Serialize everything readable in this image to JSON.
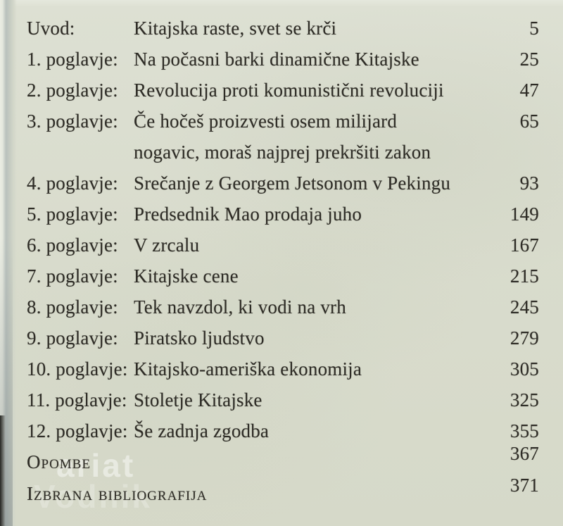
{
  "colors": {
    "paper": "#d9dccd",
    "ink": "#2e2c26",
    "edge_shadow": "#b9c1bd",
    "dark_corner": "#0e0e0b",
    "watermark": "#ffffff"
  },
  "watermark": {
    "line1": "ariat",
    "line2": "Vodnik"
  },
  "toc": {
    "entries": [
      {
        "label": "Uvod:",
        "title": "Kitajska raste, svet se krči",
        "page": "5"
      },
      {
        "label": "1. poglavje:",
        "title": "Na počasni barki dinamične Kitajske",
        "page": "25"
      },
      {
        "label": "2. poglavje:",
        "title": "Revolucija proti komunistični revoluciji",
        "page": "47"
      },
      {
        "label": "3. poglavje:",
        "title": "Če hočeš proizvesti osem milijard",
        "page": "65",
        "title_line2": "nogavic, moraš najprej prekršiti zakon"
      },
      {
        "label": "4. poglavje:",
        "title": "Srečanje z Georgem Jetsonom v Pekingu",
        "page": "93"
      },
      {
        "label": "5. poglavje:",
        "title": "Predsednik Mao prodaja juho",
        "page": "149"
      },
      {
        "label": "6. poglavje:",
        "title": "V zrcalu",
        "page": "167"
      },
      {
        "label": "7. poglavje:",
        "title": "Kitajske cene",
        "page": "215"
      },
      {
        "label": "8. poglavje:",
        "title": "Tek navzdol, ki vodi na vrh",
        "page": "245"
      },
      {
        "label": "9. poglavje:",
        "title": "Piratsko ljudstvo",
        "page": "279"
      },
      {
        "label": "10. poglavje:",
        "title": "Kitajsko-ameriška ekonomija",
        "page": "305"
      },
      {
        "label": "11. poglavje:",
        "title": "Stoletje Kitajske",
        "page": "325"
      },
      {
        "label": "12. poglavje:",
        "title": "Še zadnja zgodba",
        "page": "355"
      },
      {
        "label": "Opombe",
        "title": "",
        "page": "367"
      },
      {
        "label": "Izbrana bibliografija",
        "title": "",
        "page": "371"
      }
    ]
  }
}
